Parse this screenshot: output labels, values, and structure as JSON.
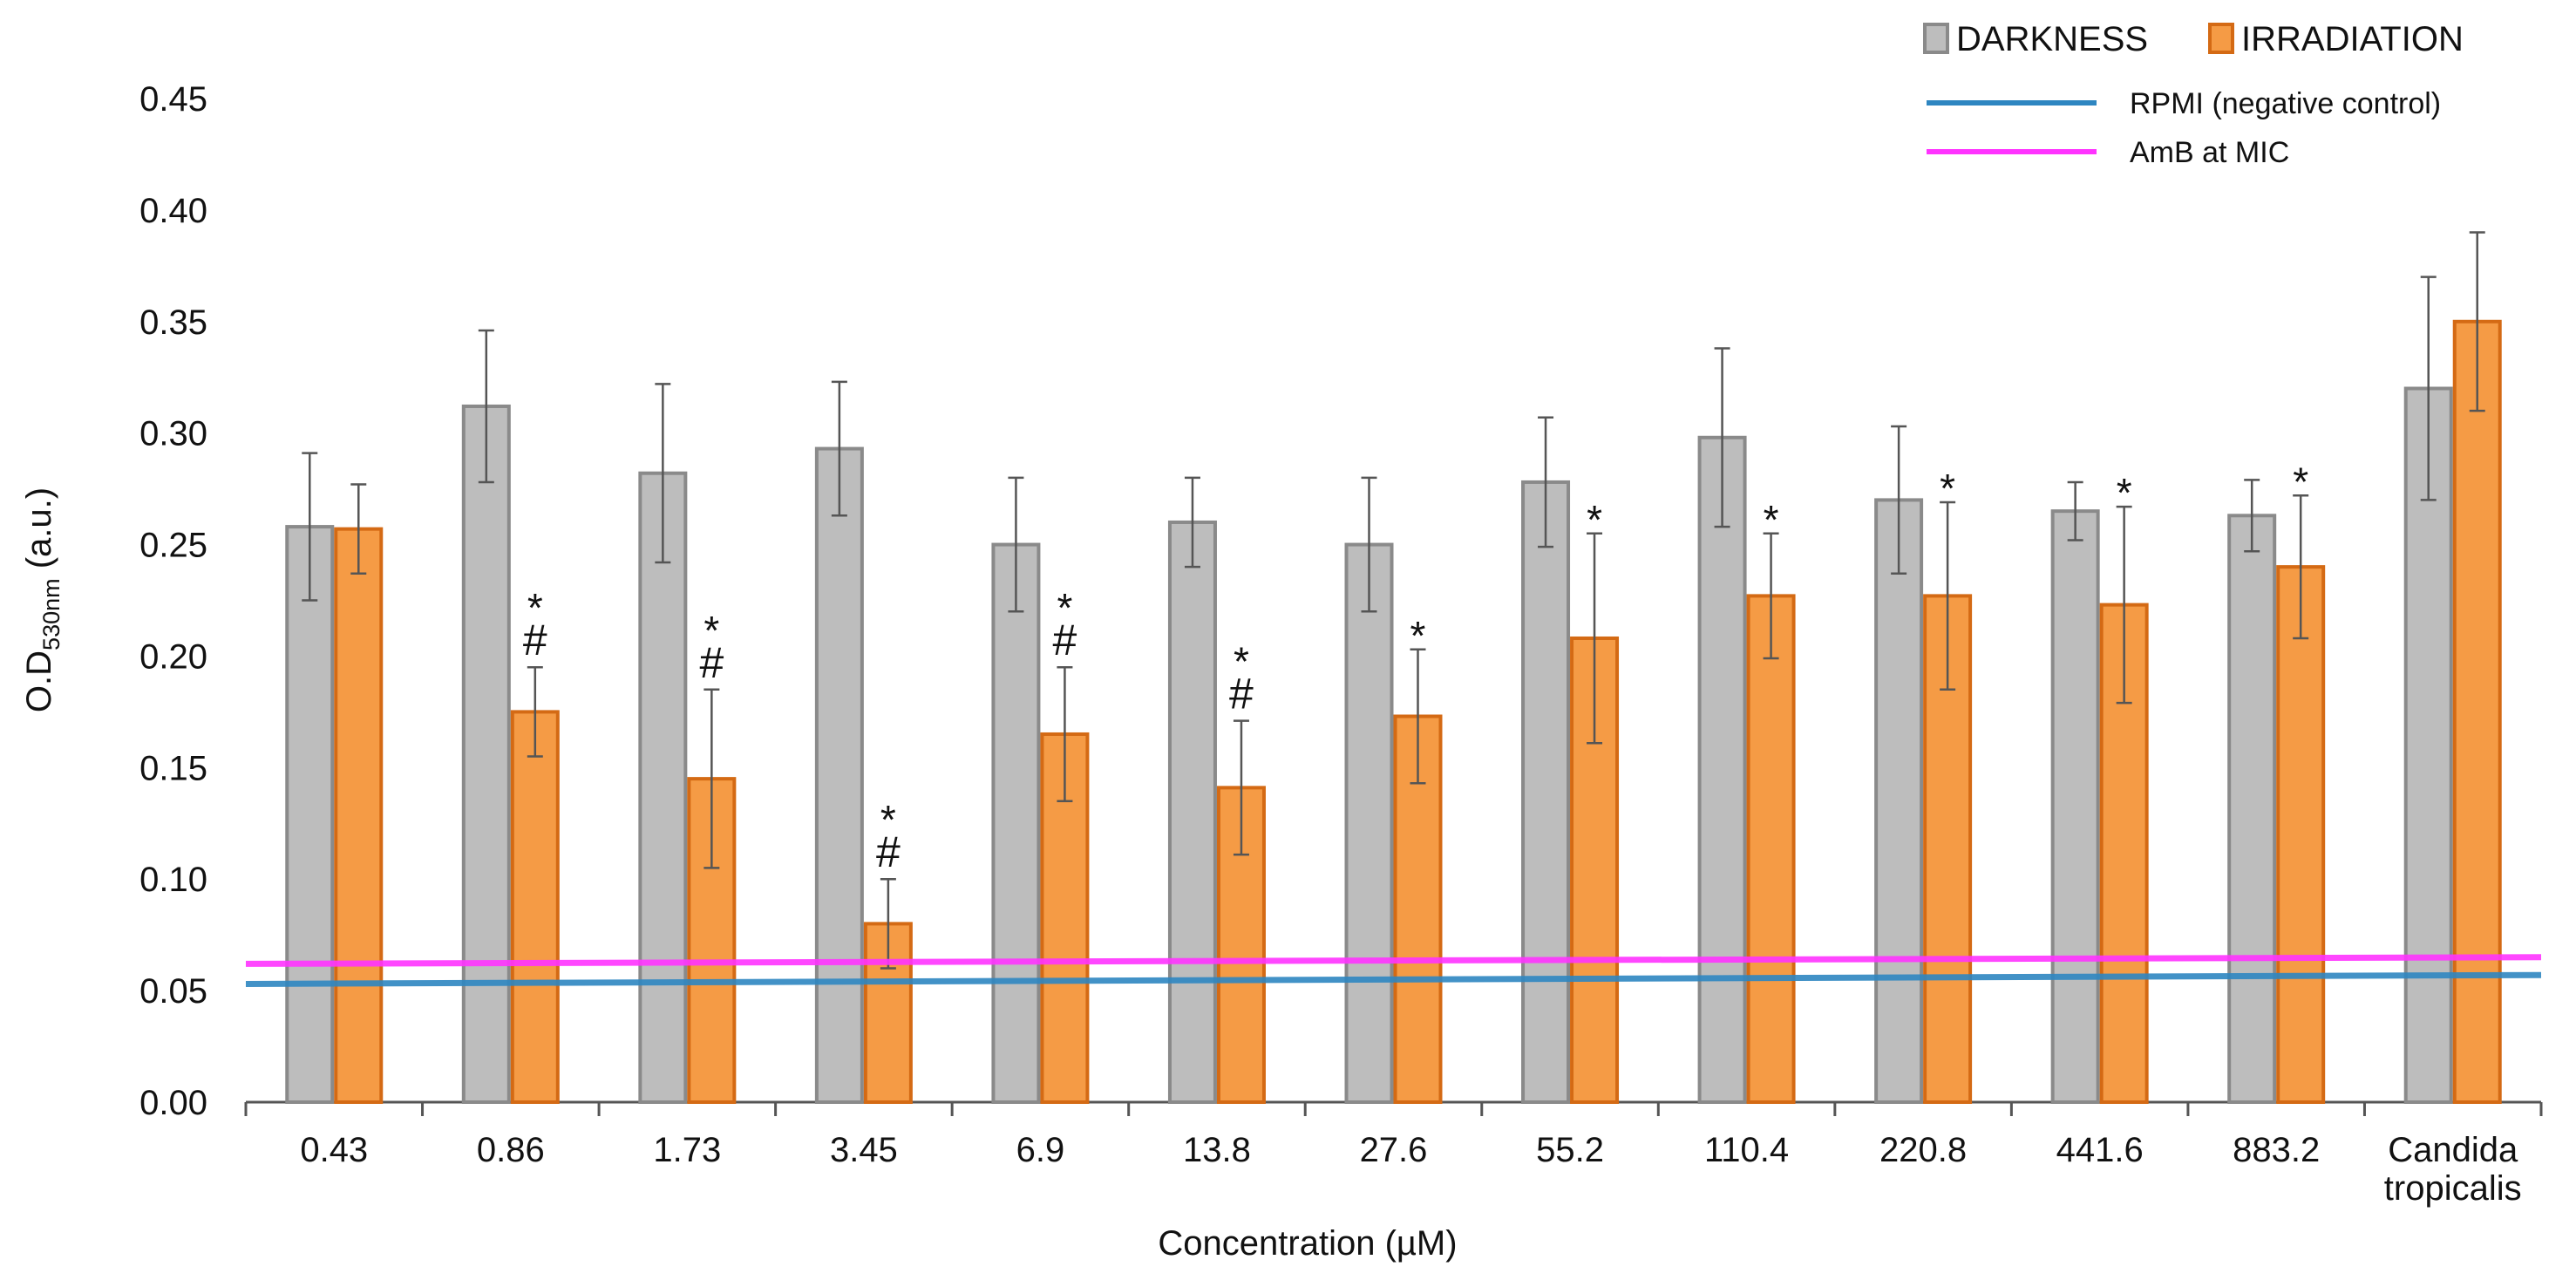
{
  "chart_data": {
    "type": "bar",
    "ylabel_main": "O.D",
    "ylabel_sub": "530nm",
    "ylabel_unit": "(a.u.)",
    "xlabel": "Concentration (µM)",
    "ylim": [
      0,
      0.45
    ],
    "ytick_step": 0.05,
    "legend_position": "top-right",
    "categories": [
      [
        "0.43"
      ],
      [
        "0.86"
      ],
      [
        "1.73"
      ],
      [
        "3.45"
      ],
      [
        "6.9"
      ],
      [
        "13.8"
      ],
      [
        "27.6"
      ],
      [
        "55.2"
      ],
      [
        "110.4"
      ],
      [
        "220.8"
      ],
      [
        "441.6"
      ],
      [
        "883.2"
      ],
      [
        "Candida",
        "tropicalis"
      ]
    ],
    "series": [
      {
        "name": "DARKNESS",
        "color": "#bdbdbd",
        "edge_color": "#8a8a8a",
        "values": [
          0.258,
          0.312,
          0.282,
          0.293,
          0.25,
          0.26,
          0.25,
          0.278,
          0.298,
          0.27,
          0.265,
          0.263,
          0.32
        ],
        "errors": [
          0.033,
          0.034,
          0.04,
          0.03,
          0.03,
          0.02,
          0.03,
          0.029,
          0.04,
          0.033,
          0.013,
          0.016,
          0.05
        ]
      },
      {
        "name": "IRRADIATION",
        "color": "#f59b45",
        "edge_color": "#d46a14",
        "values": [
          0.257,
          0.175,
          0.145,
          0.08,
          0.165,
          0.141,
          0.173,
          0.208,
          0.227,
          0.227,
          0.223,
          0.24,
          0.35
        ],
        "errors": [
          0.02,
          0.02,
          0.04,
          0.02,
          0.03,
          0.03,
          0.03,
          0.047,
          0.028,
          0.042,
          0.044,
          0.032,
          0.04
        ]
      }
    ],
    "annotations": [
      {
        "category": 1,
        "series": "IRRADIATION",
        "symbols": [
          "*",
          "#"
        ]
      },
      {
        "category": 2,
        "series": "IRRADIATION",
        "symbols": [
          "*",
          "#"
        ]
      },
      {
        "category": 3,
        "series": "IRRADIATION",
        "symbols": [
          "*",
          "#"
        ]
      },
      {
        "category": 4,
        "series": "IRRADIATION",
        "symbols": [
          "*",
          "#"
        ]
      },
      {
        "category": 5,
        "series": "IRRADIATION",
        "symbols": [
          "*",
          "#"
        ]
      },
      {
        "category": 6,
        "series": "IRRADIATION",
        "symbols": [
          "*"
        ]
      },
      {
        "category": 7,
        "series": "IRRADIATION",
        "symbols": [
          "*"
        ]
      },
      {
        "category": 8,
        "series": "IRRADIATION",
        "symbols": [
          "*"
        ]
      },
      {
        "category": 9,
        "series": "IRRADIATION",
        "symbols": [
          "*"
        ]
      },
      {
        "category": 10,
        "series": "IRRADIATION",
        "symbols": [
          "*"
        ]
      },
      {
        "category": 11,
        "series": "IRRADIATION",
        "symbols": [
          "*"
        ]
      }
    ],
    "reference_lines": [
      {
        "name": "RPMI (negative control)",
        "color": "#2e86c1",
        "y_start": 0.053,
        "y_end": 0.057
      },
      {
        "name": "AmB at MIC",
        "color": "#ff33ff",
        "y_start": 0.062,
        "y_end": 0.065
      }
    ]
  }
}
